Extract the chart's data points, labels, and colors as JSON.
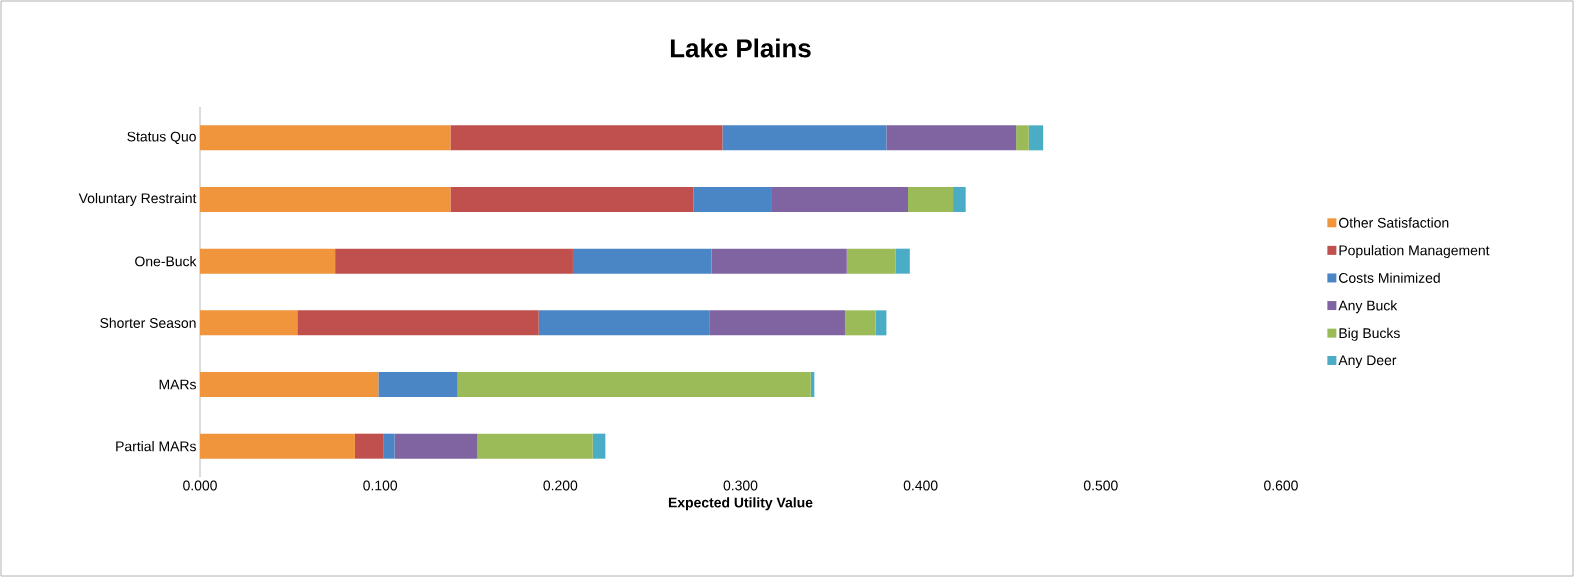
{
  "chart_data": {
    "type": "bar",
    "orientation": "horizontal",
    "stacked": true,
    "title": "Lake Plains",
    "xlabel": "Expected Utility Value",
    "categories": [
      "Status Quo",
      "Voluntary Restraint",
      "One-Buck",
      "Shorter Season",
      "MARs",
      "Partial MARs"
    ],
    "series": [
      {
        "name": "Other Satisfaction",
        "color": "#f0953c",
        "values": [
          0.139,
          0.139,
          0.075,
          0.054,
          0.099,
          0.086
        ]
      },
      {
        "name": "Population Management",
        "color": "#c0504d",
        "values": [
          0.151,
          0.135,
          0.132,
          0.134,
          0,
          0.016
        ]
      },
      {
        "name": "Costs Minimized",
        "color": "#4a86c5",
        "values": [
          0.091,
          0.043,
          0.077,
          0.095,
          0.044,
          0.006
        ]
      },
      {
        "name": "Any Buck",
        "color": "#8064a2",
        "values": [
          0.072,
          0.076,
          0.075,
          0.075,
          0,
          0.046
        ]
      },
      {
        "name": "Big Bucks",
        "color": "#9bbb59",
        "values": [
          0.007,
          0.025,
          0.027,
          0.017,
          0.196,
          0.064
        ]
      },
      {
        "name": "Any Deer",
        "color": "#4bacc6",
        "values": [
          0.008,
          0.007,
          0.008,
          0.006,
          0.002,
          0.007
        ]
      }
    ],
    "xlim": [
      0,
      0.6
    ],
    "xticks": [
      {
        "value": 0,
        "label": "0.000"
      },
      {
        "value": 0.1,
        "label": "0.100"
      },
      {
        "value": 0.2,
        "label": "0.200"
      },
      {
        "value": 0.3,
        "label": "0.300"
      },
      {
        "value": 0.4,
        "label": "0.400"
      },
      {
        "value": 0.5,
        "label": "0.500"
      },
      {
        "value": 0.6,
        "label": "0.600"
      }
    ],
    "legend": "right",
    "grid": false
  }
}
